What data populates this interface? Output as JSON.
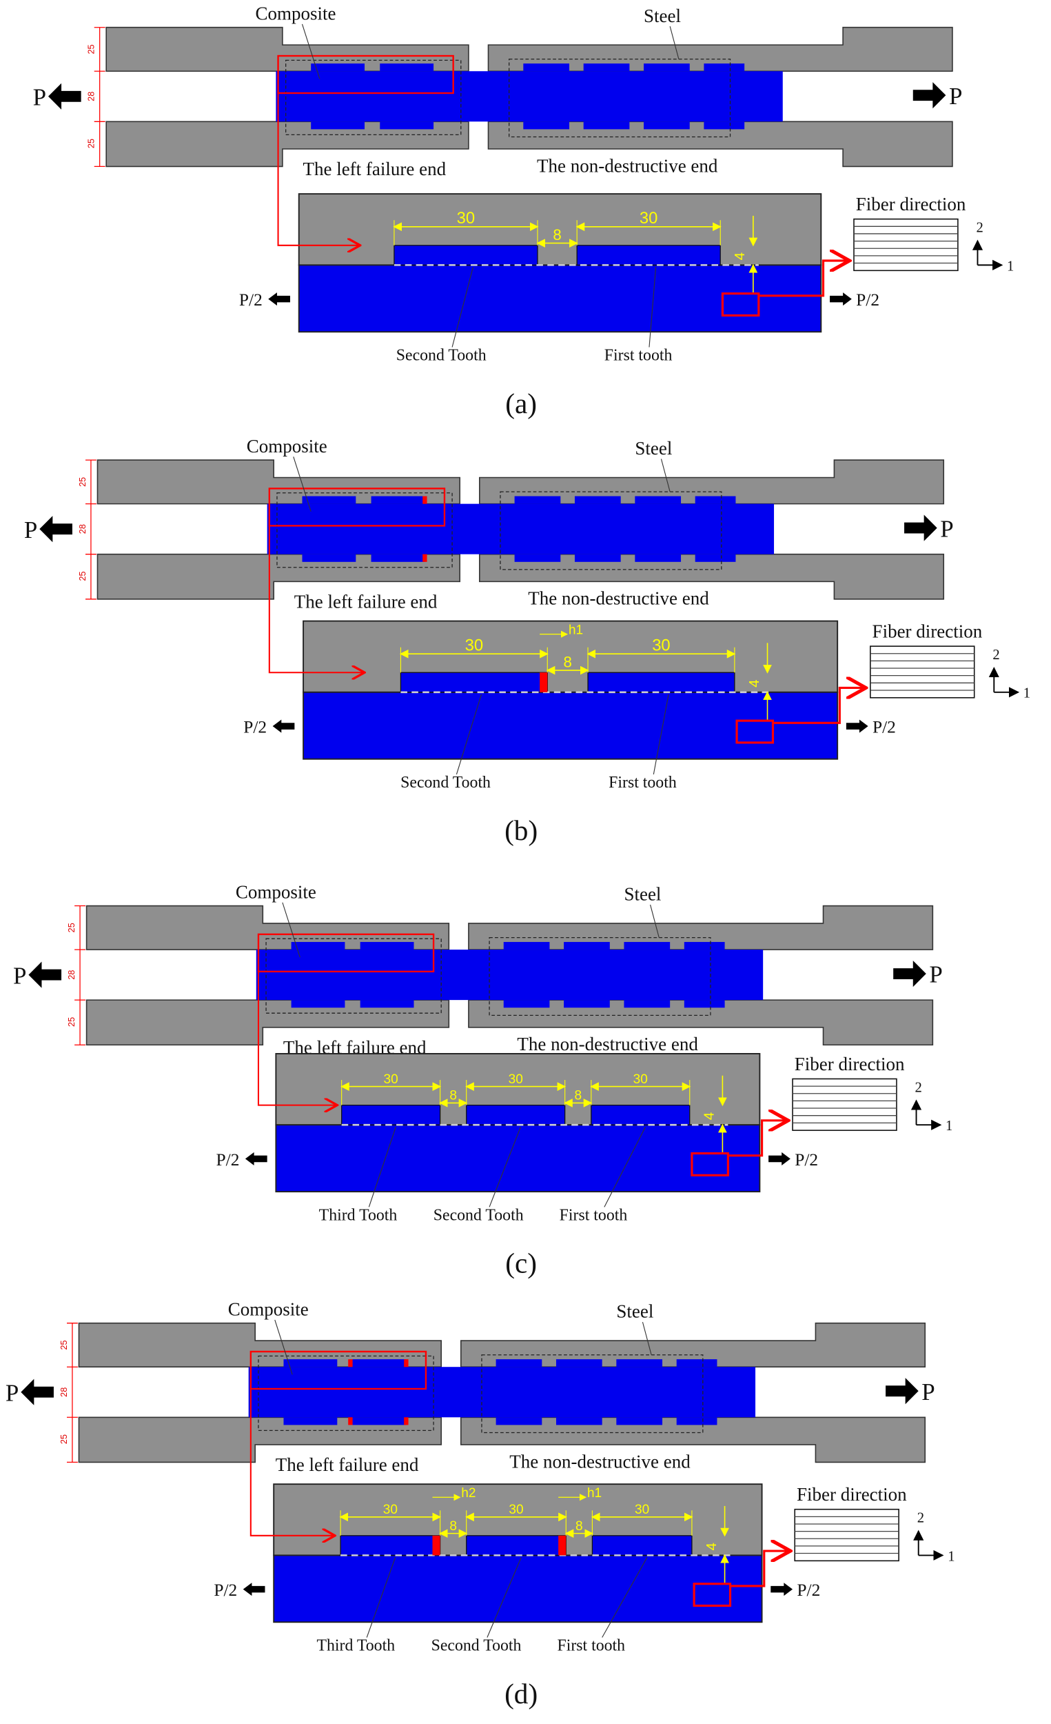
{
  "colors": {
    "steel": "#8f8f8f",
    "composite": "#0000ee",
    "highlight": "#ff0000",
    "dimension": "#ffff00",
    "crack": "#ff0000"
  },
  "common": {
    "composite": "Composite",
    "steel": "Steel",
    "left_end": "The left failure end",
    "nondestructive_end": "The non-destructive end",
    "load": "P",
    "half_load": "P/2",
    "fiber_direction": "Fiber direction",
    "axis_1": "1",
    "axis_2": "2",
    "thickness_dims": [
      "25",
      "28",
      "25"
    ],
    "tooth_length": "30",
    "tooth_gap": "8",
    "tooth_height": "4"
  },
  "panels": [
    {
      "caption": "(a)",
      "teeth_labels": [
        "Second Tooth",
        "First tooth"
      ],
      "crack_labels": []
    },
    {
      "caption": "(b)",
      "teeth_labels": [
        "Second Tooth",
        "First tooth"
      ],
      "crack_labels": [
        "h1"
      ]
    },
    {
      "caption": "(c)",
      "teeth_labels": [
        "Third Tooth",
        "Second Tooth",
        "First tooth"
      ],
      "crack_labels": []
    },
    {
      "caption": "(d)",
      "teeth_labels": [
        "Third Tooth",
        "Second Tooth",
        "First tooth"
      ],
      "crack_labels": [
        "h2",
        "h1"
      ]
    }
  ]
}
